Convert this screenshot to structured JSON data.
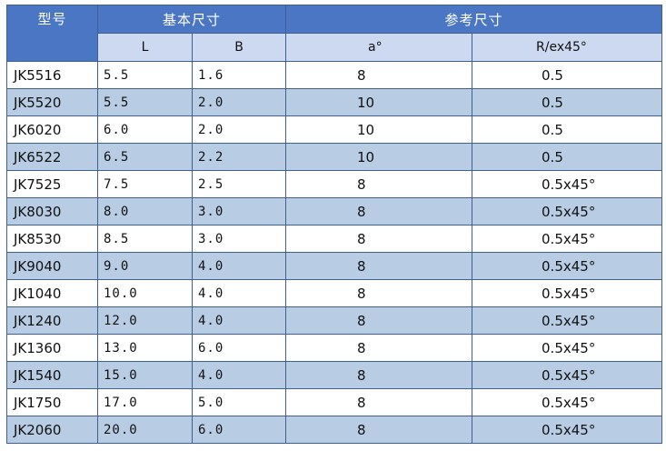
{
  "table": {
    "header": {
      "model": "型号",
      "basic": "基本尺寸",
      "reference": "参考尺寸",
      "L": "L",
      "B": "B",
      "a": "a°",
      "R": "R/ex45°"
    },
    "rows": [
      {
        "model": "JK5516",
        "L": "5.5",
        "B": "1.6",
        "a": "8",
        "R": "0.5"
      },
      {
        "model": "JK5520",
        "L": "5.5",
        "B": "2.0",
        "a": "10",
        "R": "0.5"
      },
      {
        "model": "JK6020",
        "L": "6.0",
        "B": "2.0",
        "a": "10",
        "R": "0.5"
      },
      {
        "model": "JK6522",
        "L": "6.5",
        "B": "2.2",
        "a": "10",
        "R": "0.5"
      },
      {
        "model": "JK7525",
        "L": "7.5",
        "B": "2.5",
        "a": "8",
        "R": "0.5x45°"
      },
      {
        "model": "JK8030",
        "L": "8.0",
        "B": "3.0",
        "a": "8",
        "R": "0.5x45°"
      },
      {
        "model": "JK8530",
        "L": "8.5",
        "B": "3.0",
        "a": "8",
        "R": "0.5x45°"
      },
      {
        "model": "JK9040",
        "L": "9.0",
        "B": "4.0",
        "a": "8",
        "R": "0.5x45°"
      },
      {
        "model": "JK1040",
        "L": "10.0",
        "B": "4.0",
        "a": "8",
        "R": "0.5x45°"
      },
      {
        "model": "JK1240",
        "L": "12.0",
        "B": "4.0",
        "a": "8",
        "R": "0.5x45°"
      },
      {
        "model": "JK1360",
        "L": "13.0",
        "B": "6.0",
        "a": "8",
        "R": "0.5x45°"
      },
      {
        "model": "JK1540",
        "L": "15.0",
        "B": "4.0",
        "a": "8",
        "R": "0.5x45°"
      },
      {
        "model": "JK1750",
        "L": "17.0",
        "B": "5.0",
        "a": "8",
        "R": "0.5x45°"
      },
      {
        "model": "JK2060",
        "L": "20.0",
        "B": "6.0",
        "a": "8",
        "R": "0.5x45°"
      }
    ]
  },
  "colors": {
    "header_blue": "#4a76c3",
    "subheader_light": "#ccd9f0",
    "band_blue": "#b8cce4",
    "border": "#3f5f8e"
  }
}
